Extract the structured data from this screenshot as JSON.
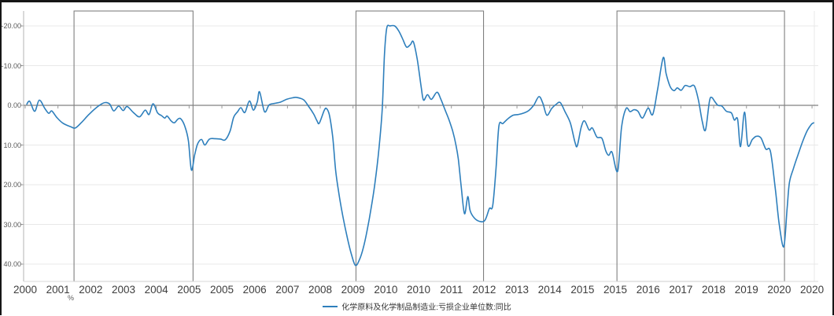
{
  "chart_data": {
    "type": "line",
    "title": "",
    "unit_label": "%",
    "legend_position": "bottom-center",
    "grid": "horizontal-light",
    "y_axis": {
      "inverted": true,
      "tick_labels": [
        "-20.00",
        "-10.00",
        "0.00",
        "10.00",
        "20.00",
        "30.00",
        "40.00"
      ],
      "tick_values": [
        -20,
        -10,
        0,
        10,
        20,
        30,
        40
      ],
      "range_shown": [
        -23.7,
        44.3
      ]
    },
    "x_axis": {
      "tick_labels": [
        "2000",
        "2001",
        "2002",
        "2003",
        "2004",
        "2005",
        "2005",
        "2006",
        "2007",
        "2008",
        "2009",
        "2010",
        "2010",
        "2011",
        "2012",
        "2013",
        "2014",
        "2015",
        "2015",
        "2016",
        "2017",
        "2018",
        "2019",
        "2020",
        "2020"
      ],
      "note": "x values of data points below are in tick-interval units 0-24 along this axis"
    },
    "highlight_boxes": [
      {
        "t_start": 1.49,
        "t_end": 5.12
      },
      {
        "t_start": 10.09,
        "t_end": 13.98
      },
      {
        "t_start": 18.05,
        "t_end": 23.16
      }
    ],
    "series": [
      {
        "name": "化学原料及化学制品制造业:亏损企业单位数:同比",
        "color": "#2e7fbc",
        "points": [
          [
            0.05,
            -0.3
          ],
          [
            0.14,
            -1.0
          ],
          [
            0.29,
            1.5
          ],
          [
            0.43,
            -1.3
          ],
          [
            0.6,
            0.8
          ],
          [
            0.72,
            2.0
          ],
          [
            0.81,
            1.4
          ],
          [
            0.96,
            3.0
          ],
          [
            1.15,
            4.5
          ],
          [
            1.39,
            5.4
          ],
          [
            1.53,
            5.7
          ],
          [
            1.72,
            4.3
          ],
          [
            1.91,
            2.6
          ],
          [
            2.11,
            1.0
          ],
          [
            2.3,
            -0.2
          ],
          [
            2.44,
            -0.7
          ],
          [
            2.58,
            -0.3
          ],
          [
            2.7,
            1.4
          ],
          [
            2.85,
            0.2
          ],
          [
            2.99,
            1.3
          ],
          [
            3.11,
            0.3
          ],
          [
            3.3,
            1.8
          ],
          [
            3.49,
            2.9
          ],
          [
            3.66,
            1.2
          ],
          [
            3.78,
            2.3
          ],
          [
            3.9,
            -0.4
          ],
          [
            4.04,
            1.9
          ],
          [
            4.16,
            2.6
          ],
          [
            4.26,
            3.2
          ],
          [
            4.33,
            2.7
          ],
          [
            4.45,
            3.9
          ],
          [
            4.55,
            4.4
          ],
          [
            4.67,
            3.4
          ],
          [
            4.76,
            3.5
          ],
          [
            4.88,
            5.5
          ],
          [
            4.98,
            9.0
          ],
          [
            5.07,
            16.3
          ],
          [
            5.17,
            12.5
          ],
          [
            5.26,
            9.7
          ],
          [
            5.38,
            8.6
          ],
          [
            5.48,
            10.0
          ],
          [
            5.62,
            8.5
          ],
          [
            5.79,
            8.4
          ],
          [
            5.96,
            8.5
          ],
          [
            6.1,
            8.7
          ],
          [
            6.25,
            6.5
          ],
          [
            6.36,
            3.0
          ],
          [
            6.48,
            1.6
          ],
          [
            6.58,
            0.6
          ],
          [
            6.7,
            1.8
          ],
          [
            6.84,
            -1.1
          ],
          [
            6.96,
            1.2
          ],
          [
            7.08,
            -0.9
          ],
          [
            7.15,
            -3.4
          ],
          [
            7.3,
            1.6
          ],
          [
            7.44,
            -0.1
          ],
          [
            7.61,
            -0.5
          ],
          [
            7.78,
            -0.8
          ],
          [
            7.97,
            -1.5
          ],
          [
            8.16,
            -1.9
          ],
          [
            8.28,
            -2.0
          ],
          [
            8.49,
            -1.4
          ],
          [
            8.64,
            0.2
          ],
          [
            8.8,
            2.2
          ],
          [
            8.9,
            3.9
          ],
          [
            8.97,
            4.5
          ],
          [
            9.12,
            1.3
          ],
          [
            9.19,
            0.8
          ],
          [
            9.28,
            2.5
          ],
          [
            9.38,
            8.0
          ],
          [
            9.47,
            16.4
          ],
          [
            9.57,
            22.3
          ],
          [
            9.69,
            28.0
          ],
          [
            9.83,
            33.5
          ],
          [
            9.95,
            37.5
          ],
          [
            10.07,
            40.3
          ],
          [
            10.19,
            39.0
          ],
          [
            10.31,
            36.0
          ],
          [
            10.43,
            31.5
          ],
          [
            10.55,
            26.0
          ],
          [
            10.67,
            19.5
          ],
          [
            10.79,
            11.0
          ],
          [
            10.89,
            1.0
          ],
          [
            10.96,
            -13.0
          ],
          [
            11.03,
            -19.5
          ],
          [
            11.13,
            -20.0
          ],
          [
            11.27,
            -20.0
          ],
          [
            11.39,
            -18.8
          ],
          [
            11.51,
            -16.8
          ],
          [
            11.63,
            -14.7
          ],
          [
            11.75,
            -15.3
          ],
          [
            11.84,
            -16.0
          ],
          [
            11.96,
            -11.5
          ],
          [
            12.08,
            -4.5
          ],
          [
            12.15,
            -1.3
          ],
          [
            12.27,
            -2.7
          ],
          [
            12.39,
            -1.5
          ],
          [
            12.56,
            -3.3
          ],
          [
            12.68,
            -1.5
          ],
          [
            12.8,
            1.0
          ],
          [
            12.92,
            3.5
          ],
          [
            13.04,
            6.5
          ],
          [
            13.14,
            10.0
          ],
          [
            13.21,
            13.5
          ],
          [
            13.3,
            20.5
          ],
          [
            13.4,
            27.3
          ],
          [
            13.5,
            23.0
          ],
          [
            13.57,
            26.5
          ],
          [
            13.69,
            28.3
          ],
          [
            13.85,
            29.2
          ],
          [
            14.02,
            29.0
          ],
          [
            14.16,
            26.0
          ],
          [
            14.26,
            25.3
          ],
          [
            14.36,
            16.0
          ],
          [
            14.45,
            5.2
          ],
          [
            14.57,
            4.6
          ],
          [
            14.72,
            3.4
          ],
          [
            14.88,
            2.5
          ],
          [
            15.05,
            2.3
          ],
          [
            15.22,
            1.9
          ],
          [
            15.36,
            1.3
          ],
          [
            15.51,
            0.0
          ],
          [
            15.67,
            -2.2
          ],
          [
            15.79,
            -0.5
          ],
          [
            15.91,
            2.5
          ],
          [
            16.06,
            0.8
          ],
          [
            16.2,
            -0.3
          ],
          [
            16.32,
            -0.7
          ],
          [
            16.46,
            1.5
          ],
          [
            16.63,
            4.5
          ],
          [
            16.77,
            9.3
          ],
          [
            16.84,
            10.2
          ],
          [
            16.96,
            5.5
          ],
          [
            17.06,
            3.9
          ],
          [
            17.2,
            6.2
          ],
          [
            17.3,
            5.7
          ],
          [
            17.44,
            8.0
          ],
          [
            17.59,
            8.3
          ],
          [
            17.71,
            11.5
          ],
          [
            17.8,
            12.6
          ],
          [
            17.9,
            11.8
          ],
          [
            18.07,
            16.6
          ],
          [
            18.19,
            5.5
          ],
          [
            18.33,
            0.8
          ],
          [
            18.45,
            1.6
          ],
          [
            18.57,
            1.1
          ],
          [
            18.69,
            1.5
          ],
          [
            18.83,
            3.2
          ],
          [
            19.0,
            0.7
          ],
          [
            19.14,
            2.3
          ],
          [
            19.29,
            -4.0
          ],
          [
            19.46,
            -12.0
          ],
          [
            19.55,
            -8.0
          ],
          [
            19.67,
            -4.8
          ],
          [
            19.79,
            -3.7
          ],
          [
            19.89,
            -4.4
          ],
          [
            20.01,
            -3.8
          ],
          [
            20.13,
            -5.0
          ],
          [
            20.27,
            -4.7
          ],
          [
            20.41,
            -4.9
          ],
          [
            20.53,
            -1.5
          ],
          [
            20.65,
            4.0
          ],
          [
            20.75,
            6.2
          ],
          [
            20.87,
            -1.0
          ],
          [
            20.94,
            -2.0
          ],
          [
            21.03,
            -1.0
          ],
          [
            21.13,
            0.0
          ],
          [
            21.25,
            0.2
          ],
          [
            21.39,
            1.5
          ],
          [
            21.54,
            1.9
          ],
          [
            21.63,
            3.7
          ],
          [
            21.73,
            3.5
          ],
          [
            21.82,
            10.4
          ],
          [
            21.94,
            1.7
          ],
          [
            22.04,
            10.0
          ],
          [
            22.18,
            8.6
          ],
          [
            22.3,
            7.8
          ],
          [
            22.44,
            8.2
          ],
          [
            22.59,
            11.0
          ],
          [
            22.73,
            11.6
          ],
          [
            22.88,
            21.0
          ],
          [
            23.0,
            30.0
          ],
          [
            23.14,
            35.6
          ],
          [
            23.24,
            26.0
          ],
          [
            23.31,
            19.5
          ],
          [
            23.43,
            16.0
          ],
          [
            23.57,
            12.5
          ],
          [
            23.72,
            9.0
          ],
          [
            23.86,
            6.3
          ],
          [
            23.98,
            4.8
          ],
          [
            24.05,
            4.4
          ]
        ]
      }
    ]
  },
  "legend": {
    "label": "化学原料及化学制品制造业:亏损企业单位数:同比",
    "swatch_color": "#2e7fbc"
  },
  "colors": {
    "line": "#2e7fbc",
    "zero_line": "#808080",
    "gridline": "#e8e8e8",
    "axis": "#b3b3b3",
    "tick": "#999999",
    "box_border": "#808080",
    "frame": "#161616"
  }
}
